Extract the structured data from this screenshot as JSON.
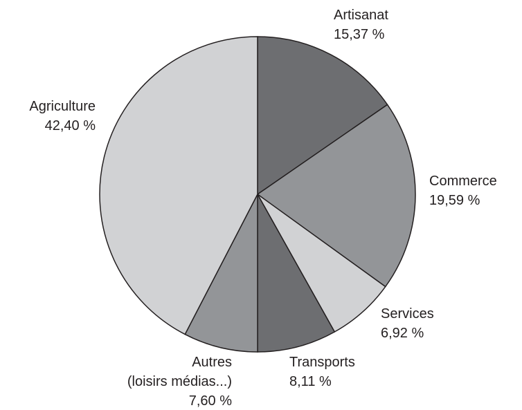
{
  "chart_data": {
    "type": "pie",
    "categories": [
      "Artisanat",
      "Commerce",
      "Services",
      "Transports",
      "Autres\n(loisirs médias...)",
      "Agriculture"
    ],
    "values": [
      15.37,
      19.59,
      6.92,
      8.11,
      7.6,
      42.4
    ],
    "value_labels": [
      "15,37 %",
      "19,59 %",
      "6,92 %",
      "8,11 %",
      "7,60 %",
      "42,40 %"
    ],
    "colors": [
      "#6d6e71",
      "#939598",
      "#d1d2d4",
      "#6d6e71",
      "#939598",
      "#d1d2d4"
    ]
  }
}
